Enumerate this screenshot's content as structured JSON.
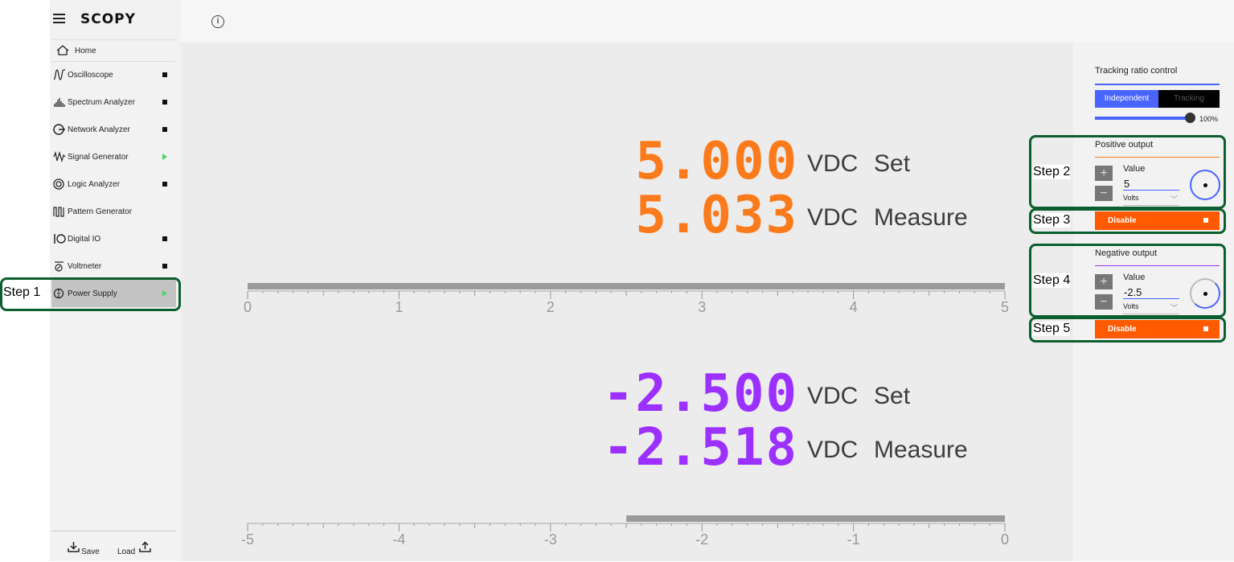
{
  "sidebar": {
    "brand": "SCOPY",
    "home_label": "Home",
    "items": [
      {
        "label": "Oscilloscope",
        "status": "stopped"
      },
      {
        "label": "Spectrum Analyzer",
        "status": "stopped"
      },
      {
        "label": "Network Analyzer",
        "status": "stopped"
      },
      {
        "label": "Signal Generator",
        "status": "running"
      },
      {
        "label": "Logic Analyzer",
        "status": "stopped"
      },
      {
        "label": "Pattern Generator",
        "status": "none"
      },
      {
        "label": "Digital IO",
        "status": "stopped"
      },
      {
        "label": "Voltmeter",
        "status": "stopped"
      },
      {
        "label": "Power Supply",
        "status": "running",
        "active": true
      }
    ],
    "save_label": "Save",
    "load_label": "Load"
  },
  "positive": {
    "set_value": "5.000",
    "measure_value": "5.033",
    "unit": "VDC",
    "set_label": "Set",
    "measure_label": "Measure",
    "scale_ticks": [
      "0",
      "1",
      "2",
      "3",
      "4",
      "5"
    ],
    "bar_fraction": 1.0
  },
  "negative": {
    "set_value": "-2.500",
    "measure_value": "-2.518",
    "unit": "VDC",
    "set_label": "Set",
    "measure_label": "Measure",
    "scale_ticks": [
      "-5",
      "-4",
      "-3",
      "-2",
      "-1",
      "0"
    ],
    "bar_fraction": 0.5
  },
  "right_panel": {
    "tracking_title": "Tracking ratio control",
    "independent_label": "Independent",
    "tracking_label": "Tracking",
    "ratio_percent": "100%",
    "ratio_value": 100,
    "positive_output": {
      "title": "Positive output",
      "value_label": "Value",
      "value": "5",
      "units": "Volts",
      "disable_label": "Disable"
    },
    "negative_output": {
      "title": "Negative output",
      "value_label": "Value",
      "value": "-2.5",
      "units": "Volts",
      "disable_label": "Disable"
    }
  },
  "annotations": {
    "step1": "Step 1",
    "step2": "Step 2",
    "step3": "Step 3",
    "step4": "Step 4",
    "step5": "Step 5"
  },
  "colors": {
    "positive": "#fb7b1c",
    "negative": "#9b30ff",
    "accent": "#4a64ff",
    "disable": "#ff5a00",
    "step_border": "#0b5e2e"
  }
}
